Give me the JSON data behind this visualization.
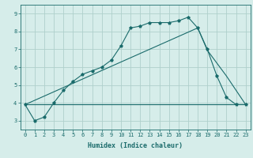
{
  "xlabel": "Humidex (Indice chaleur)",
  "background_color": "#d6edea",
  "grid_color": "#afd0cc",
  "line_color": "#1a6b6b",
  "marker": "*",
  "xlim": [
    -0.5,
    23.5
  ],
  "ylim": [
    2.5,
    9.5
  ],
  "xticks": [
    0,
    1,
    2,
    3,
    4,
    5,
    6,
    7,
    8,
    9,
    10,
    11,
    12,
    13,
    14,
    15,
    16,
    17,
    18,
    19,
    20,
    21,
    22,
    23
  ],
  "yticks": [
    3,
    4,
    5,
    6,
    7,
    8,
    9
  ],
  "line1_x": [
    0,
    1,
    2,
    3,
    4,
    5,
    6,
    7,
    8,
    9,
    10,
    11,
    12,
    13,
    14,
    15,
    16,
    17,
    18,
    19,
    20,
    21,
    22,
    23
  ],
  "line1_y": [
    3.9,
    3.0,
    3.2,
    4.0,
    4.7,
    5.2,
    5.6,
    5.8,
    6.0,
    6.4,
    7.2,
    8.2,
    8.3,
    8.5,
    8.5,
    8.5,
    8.6,
    8.8,
    8.2,
    7.0,
    5.5,
    4.3,
    3.9,
    3.9
  ],
  "line2_x": [
    0,
    23
  ],
  "line2_y": [
    3.9,
    3.9
  ],
  "line3_x": [
    0,
    18,
    19,
    21,
    23
  ],
  "line3_y": [
    3.9,
    8.2,
    6.95,
    5.5,
    3.9
  ]
}
